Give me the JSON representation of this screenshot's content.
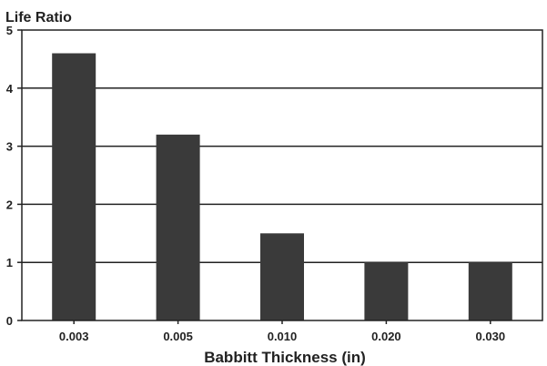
{
  "chart_data": {
    "type": "bar",
    "title": "Life Ratio",
    "xlabel": "Babbitt Thickness (in)",
    "ylabel": "",
    "categories": [
      "0.003",
      "0.005",
      "0.010",
      "0.020",
      "0.030"
    ],
    "values": [
      4.6,
      3.2,
      1.5,
      1.0,
      1.0
    ],
    "ylim": [
      0,
      5
    ],
    "yticks": [
      "0",
      "1",
      "2",
      "3",
      "4",
      "5"
    ],
    "grid": true,
    "bar_color": "#3a3a3a"
  }
}
